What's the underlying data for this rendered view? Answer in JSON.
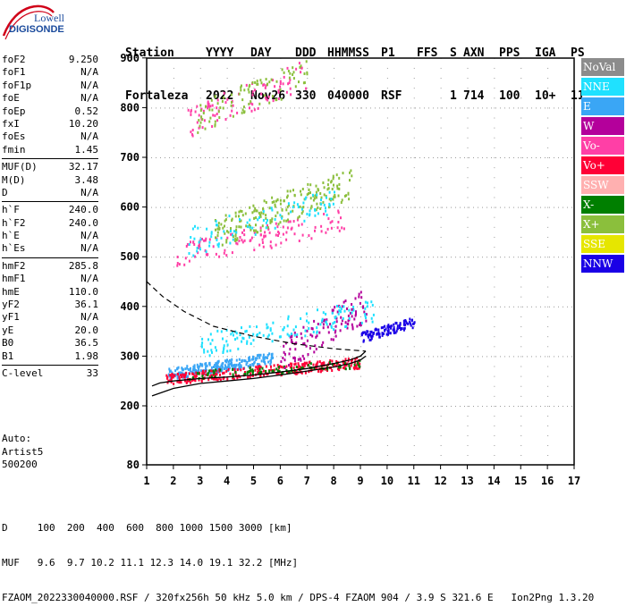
{
  "brand": {
    "line1": "Lowell",
    "line2": "DIGISONDE"
  },
  "header": {
    "labels": [
      "Station",
      "YYYY",
      "DAY",
      "DDD",
      "HHMMSS",
      "P1",
      "FFS",
      "S",
      "AXN",
      "PPS",
      "IGA",
      "PS"
    ],
    "values": [
      "Fortaleza",
      "2022",
      "Nov26",
      "330",
      "040000",
      "RSF",
      "1",
      "714",
      "100",
      "10+",
      "11"
    ]
  },
  "params": [
    {
      "name": "foF2",
      "value": "9.250"
    },
    {
      "name": "foF1",
      "value": "N/A"
    },
    {
      "name": "foF1p",
      "value": "N/A"
    },
    {
      "name": "foE",
      "value": "N/A"
    },
    {
      "name": "foEp",
      "value": "0.52"
    },
    {
      "name": "fxI",
      "value": "10.20"
    },
    {
      "name": "foEs",
      "value": "N/A"
    },
    {
      "name": "fmin",
      "value": "1.45"
    },
    {
      "name": "MUF(D)",
      "value": "32.17"
    },
    {
      "name": "M(D)",
      "value": "3.48"
    },
    {
      "name": "D",
      "value": "N/A"
    },
    {
      "name": "h`F",
      "value": "240.0"
    },
    {
      "name": "h`F2",
      "value": "240.0"
    },
    {
      "name": "h`E",
      "value": "N/A"
    },
    {
      "name": "h`Es",
      "value": "N/A"
    },
    {
      "name": "hmF2",
      "value": "285.8"
    },
    {
      "name": "hmF1",
      "value": "N/A"
    },
    {
      "name": "hmE",
      "value": "110.0"
    },
    {
      "name": "yF2",
      "value": "36.1"
    },
    {
      "name": "yF1",
      "value": "N/A"
    },
    {
      "name": "yE",
      "value": "20.0"
    },
    {
      "name": "B0",
      "value": "36.5"
    },
    {
      "name": "B1",
      "value": "1.98"
    },
    {
      "name": "C-level",
      "value": "33"
    }
  ],
  "auto": {
    "line1": "Auto:",
    "line2": "Artist5",
    "line3": "500200"
  },
  "legend": [
    {
      "label": "NoVal",
      "color": "#8c8c8c"
    },
    {
      "label": "NNE",
      "color": "#1fe1ff"
    },
    {
      "label": "E",
      "color": "#3aa6f5"
    },
    {
      "label": "W",
      "color": "#b4009b"
    },
    {
      "label": "Vo-",
      "color": "#ff3fa6"
    },
    {
      "label": "Vo+",
      "color": "#ff0036"
    },
    {
      "label": "SSW",
      "color": "#ffb0b0"
    },
    {
      "label": "X-",
      "color": "#007f00"
    },
    {
      "label": "X+",
      "color": "#8bbf3c"
    },
    {
      "label": "SSE",
      "color": "#e6e600"
    },
    {
      "label": "NNW",
      "color": "#1a00e6"
    }
  ],
  "axes": {
    "x_ticks": [
      "1",
      "2",
      "3",
      "4",
      "5",
      "6",
      "7",
      "8",
      "9",
      "10",
      "11",
      "12",
      "13",
      "14",
      "15",
      "16",
      "17"
    ],
    "y_ticks": [
      "900",
      "800",
      "700",
      "600",
      "500",
      "400",
      "300",
      "200",
      "80"
    ]
  },
  "footer": {
    "d_row": "D     100  200  400  600  800 1000 1500 3000 [km]",
    "muf_row": "MUF   9.6  9.7 10.2 11.1 12.3 14.0 19.1 32.2 [MHz]",
    "file_row": "FZAOM_2022330040000.RSF / 320fx256h 50 kHz 5.0 km / DPS-4 FZAOM 904 / 3.9 S 321.6 E   Ion2Png 1.3.20"
  },
  "chart_data": {
    "type": "scatter",
    "title": "",
    "xlabel": "",
    "ylabel": "",
    "xlim": [
      1,
      17
    ],
    "ylim": [
      80,
      900
    ],
    "x_unit": "MHz",
    "y_unit": "km",
    "grid": true,
    "legend_position": "right",
    "clusters": [
      {
        "name": "E",
        "f": [
          1.8,
          5.8
        ],
        "h": [
          255,
          310
        ],
        "n": 260
      },
      {
        "name": "Vo+",
        "f": [
          1.7,
          9.0
        ],
        "h": [
          245,
          300
        ],
        "n": 320
      },
      {
        "name": "X-",
        "f": [
          2.5,
          9.0
        ],
        "h": [
          255,
          295
        ],
        "n": 90
      },
      {
        "name": "W",
        "f": [
          6.0,
          9.2
        ],
        "h": [
          270,
          440
        ],
        "n": 120
      },
      {
        "name": "NNE",
        "f": [
          3.0,
          9.5
        ],
        "h": [
          300,
          420
        ],
        "n": 140
      },
      {
        "name": "NNW",
        "f": [
          9.0,
          11.0
        ],
        "h": [
          330,
          380
        ],
        "n": 110
      },
      {
        "name": "Vo-",
        "f": [
          2.0,
          8.5
        ],
        "h": [
          480,
          600
        ],
        "n": 120
      },
      {
        "name": "X+",
        "f": [
          3.5,
          8.7
        ],
        "h": [
          520,
          680
        ],
        "n": 200
      },
      {
        "name": "NNE",
        "f": [
          2.5,
          8.0
        ],
        "h": [
          500,
          650
        ],
        "n": 90
      },
      {
        "name": "Vo-",
        "f": [
          2.5,
          7.0
        ],
        "h": [
          740,
          900
        ],
        "n": 90
      },
      {
        "name": "X+",
        "f": [
          2.8,
          7.0
        ],
        "h": [
          750,
          900
        ],
        "n": 90
      }
    ],
    "trace_lower": {
      "x": [
        1.2,
        2,
        3,
        4,
        5,
        6,
        7,
        8,
        8.6,
        9.0,
        9.2
      ],
      "y": [
        220,
        235,
        245,
        250,
        255,
        262,
        270,
        278,
        285,
        292,
        300
      ]
    },
    "trace_upper": {
      "x": [
        1.2,
        1.5,
        2,
        3,
        4,
        5,
        6,
        7,
        8,
        8.6,
        9.0,
        9.2
      ],
      "y": [
        240,
        246,
        250,
        255,
        258,
        262,
        268,
        275,
        285,
        292,
        300,
        310
      ]
    },
    "trace_dashed": {
      "x": [
        1.0,
        1.6,
        2.4,
        3.5,
        5,
        6.5,
        8,
        9.2
      ],
      "y": [
        450,
        420,
        390,
        360,
        340,
        325,
        315,
        310
      ]
    }
  }
}
